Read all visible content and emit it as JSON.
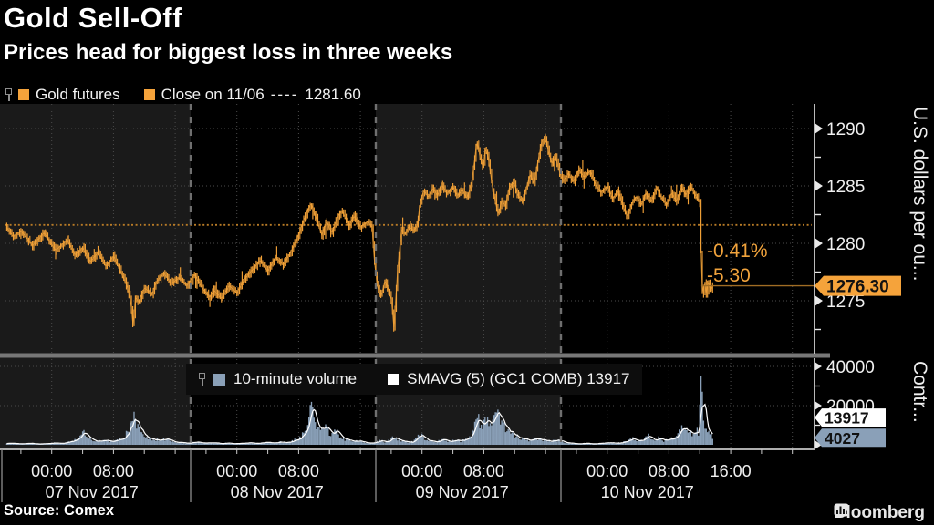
{
  "header": {
    "title": "Gold Sell-Off",
    "subtitle": "Prices head for biggest loss in three weeks"
  },
  "price_legend": {
    "series_label": "Gold futures",
    "close_label": "Close on 11/06",
    "close_dashes": "----",
    "close_value": "1281.60"
  },
  "volume_legend": {
    "volume_label": "10-minute volume",
    "smavg_label": "SMAVG (5) (GC1 COMB) 13917"
  },
  "annotations": {
    "pct_change": "-0.41%",
    "abs_change": "-5.30"
  },
  "tags": {
    "last_price": "1276.30",
    "smavg": "13917",
    "last_volume": "4027"
  },
  "axes": {
    "price_ticks": [
      1290,
      1285,
      1280,
      1275
    ],
    "price_minor_ticks": [
      1287.5,
      1282.5,
      1277.5,
      1272.5
    ],
    "price_axis_title": "U.S. dollars per ou...",
    "volume_ticks": [
      40000,
      20000
    ],
    "volume_minor_ticks": [
      30000,
      10000
    ],
    "volume_axis_title": "Contr...",
    "days": [
      {
        "label": "07 Nov 2017",
        "times": [
          "00:00",
          "08:00"
        ]
      },
      {
        "label": "08 Nov 2017",
        "times": [
          "00:00",
          "08:00"
        ]
      },
      {
        "label": "09 Nov 2017",
        "times": [
          "00:00",
          "08:00"
        ]
      },
      {
        "label": "10 Nov 2017",
        "times": [
          "00:00",
          "08:00",
          "16:00"
        ]
      }
    ]
  },
  "footer": {
    "source": "Source: Comex",
    "brand": "Bloomberg"
  },
  "colors": {
    "orange": "#f5a33b",
    "orange_dim": "#b87b26",
    "orange_line": "#a06c24",
    "volume_blue": "#8aa0b8",
    "smavg_white": "#ffffff",
    "panel_alt": "#1a1a1a",
    "grid": "#4b4b4b",
    "day_separator": "#6f6f6f",
    "panel_divider": "#777777",
    "axis": "#e8e8e8",
    "text": "#f0f0f0"
  },
  "chart_data": [
    {
      "type": "line",
      "name": "Gold futures (GC1) price, 10-minute bars",
      "x_unit": "hours since 06 Nov 2017 18:00",
      "ylim": [
        1270.5,
        1292
      ],
      "close_on_11_06": 1281.6,
      "last": 1276.3,
      "change_pct": -0.41,
      "change_abs": -5.3,
      "waypoints": [
        [
          0,
          1281.5
        ],
        [
          1,
          1280.6
        ],
        [
          2,
          1281.1
        ],
        [
          3.5,
          1279.8
        ],
        [
          5,
          1280.9
        ],
        [
          6.5,
          1279.4
        ],
        [
          8,
          1280.3
        ],
        [
          9,
          1279.0
        ],
        [
          10,
          1279.6
        ],
        [
          11,
          1278.4
        ],
        [
          12,
          1279.2
        ],
        [
          13,
          1278.0
        ],
        [
          14,
          1278.9
        ],
        [
          15,
          1277.4
        ],
        [
          15.8,
          1276.2
        ],
        [
          16.3,
          1274.6
        ],
        [
          16.55,
          1272.6
        ],
        [
          16.8,
          1275.3
        ],
        [
          17.3,
          1274.9
        ],
        [
          18,
          1276.1
        ],
        [
          19,
          1275.6
        ],
        [
          19.5,
          1276.6
        ],
        [
          20.5,
          1277.4
        ],
        [
          21.5,
          1276.5
        ],
        [
          22.5,
          1277.0
        ],
        [
          23.5,
          1276.3
        ],
        [
          24.5,
          1277.3
        ],
        [
          25.5,
          1276.1
        ],
        [
          26.5,
          1275.3
        ],
        [
          27,
          1275.9
        ],
        [
          28,
          1275.2
        ],
        [
          29,
          1276.3
        ],
        [
          30,
          1275.7
        ],
        [
          31,
          1276.9
        ],
        [
          32,
          1277.7
        ],
        [
          33,
          1278.5
        ],
        [
          34,
          1277.6
        ],
        [
          35,
          1278.8
        ],
        [
          36,
          1278.1
        ],
        [
          37,
          1279.3
        ],
        [
          37.8,
          1280.4
        ],
        [
          38.4,
          1281.5
        ],
        [
          39,
          1282.6
        ],
        [
          39.6,
          1283.5
        ],
        [
          40.2,
          1282.3
        ],
        [
          41,
          1280.7
        ],
        [
          41.6,
          1281.9
        ],
        [
          42.3,
          1280.9
        ],
        [
          43,
          1282.2
        ],
        [
          43.6,
          1282.9
        ],
        [
          44.5,
          1281.5
        ],
        [
          45.2,
          1282.4
        ],
        [
          46,
          1281.4
        ],
        [
          47,
          1281.9
        ],
        [
          47.5,
          1281.4
        ],
        [
          47.8,
          1278.5
        ],
        [
          48.2,
          1276.2
        ],
        [
          48.7,
          1275.4
        ],
        [
          49.2,
          1276.8
        ],
        [
          49.7,
          1275.8
        ],
        [
          50.1,
          1274.9
        ],
        [
          50.3,
          1272.4
        ],
        [
          50.6,
          1275.2
        ],
        [
          50.8,
          1277.5
        ],
        [
          51.3,
          1281.2
        ],
        [
          51.8,
          1280.8
        ],
        [
          52.3,
          1281.5
        ],
        [
          52.9,
          1281.1
        ],
        [
          53.4,
          1281.6
        ],
        [
          53.7,
          1283.4
        ],
        [
          54.2,
          1284.6
        ],
        [
          54.8,
          1284.0
        ],
        [
          55.4,
          1284.8
        ],
        [
          56,
          1284.2
        ],
        [
          56.6,
          1285.1
        ],
        [
          57.2,
          1284.3
        ],
        [
          58,
          1284.9
        ],
        [
          58.6,
          1284.1
        ],
        [
          59.2,
          1284.7
        ],
        [
          59.8,
          1283.9
        ],
        [
          60.4,
          1285.2
        ],
        [
          60.8,
          1287.2
        ],
        [
          61.1,
          1289.0
        ],
        [
          61.5,
          1287.5
        ],
        [
          61.9,
          1286.6
        ],
        [
          62.2,
          1288.3
        ],
        [
          62.6,
          1287.4
        ],
        [
          63.1,
          1284.9
        ],
        [
          63.5,
          1283.6
        ],
        [
          63.9,
          1282.4
        ],
        [
          64.3,
          1283.8
        ],
        [
          64.8,
          1283.2
        ],
        [
          65.3,
          1284.9
        ],
        [
          65.9,
          1285.3
        ],
        [
          66.4,
          1284.2
        ],
        [
          67,
          1283.6
        ],
        [
          67.5,
          1284.8
        ],
        [
          68,
          1286.0
        ],
        [
          68.5,
          1285.2
        ],
        [
          69,
          1287.1
        ],
        [
          69.5,
          1288.8
        ],
        [
          69.9,
          1289.3
        ],
        [
          70.3,
          1288.2
        ],
        [
          70.8,
          1286.9
        ],
        [
          71.3,
          1287.6
        ],
        [
          71.8,
          1286.2
        ],
        [
          72.3,
          1285.4
        ],
        [
          73,
          1286.1
        ],
        [
          73.6,
          1285.3
        ],
        [
          74.3,
          1286.4
        ],
        [
          75,
          1285.8
        ],
        [
          75.8,
          1286.3
        ],
        [
          76.5,
          1285.1
        ],
        [
          77.2,
          1284.4
        ],
        [
          78,
          1285.0
        ],
        [
          78.7,
          1283.9
        ],
        [
          79.4,
          1284.6
        ],
        [
          80.1,
          1283.2
        ],
        [
          80.6,
          1282.3
        ],
        [
          81.2,
          1283.5
        ],
        [
          81.8,
          1284.1
        ],
        [
          82.4,
          1283.3
        ],
        [
          83,
          1284.4
        ],
        [
          83.7,
          1283.6
        ],
        [
          84.4,
          1284.8
        ],
        [
          85,
          1284.0
        ],
        [
          85.7,
          1283.3
        ],
        [
          86.3,
          1284.4
        ],
        [
          87,
          1283.7
        ],
        [
          87.6,
          1284.9
        ],
        [
          88.2,
          1284.2
        ],
        [
          88.8,
          1285.0
        ],
        [
          89.3,
          1284.3
        ],
        [
          89.8,
          1283.8
        ],
        [
          90.05,
          1283.5
        ],
        [
          90.2,
          1278.0
        ],
        [
          90.35,
          1275.4
        ],
        [
          90.6,
          1276.8
        ],
        [
          90.85,
          1275.6
        ],
        [
          91.1,
          1276.9
        ],
        [
          91.4,
          1275.8
        ],
        [
          91.7,
          1276.3
        ]
      ]
    },
    {
      "type": "bar",
      "name": "10-minute volume (GC1 COMB)",
      "x_unit": "hours since 06 Nov 2017 18:00",
      "ylim": [
        0,
        46500
      ],
      "smavg_window": 5,
      "smavg_last": 13917,
      "last": 4027,
      "waypoints": [
        [
          0,
          600
        ],
        [
          1,
          900
        ],
        [
          2,
          500
        ],
        [
          3,
          700
        ],
        [
          4,
          400
        ],
        [
          5,
          600
        ],
        [
          6,
          1000
        ],
        [
          7,
          800
        ],
        [
          8,
          1200
        ],
        [
          9,
          2500
        ],
        [
          9.7,
          5500
        ],
        [
          10.1,
          7000
        ],
        [
          10.6,
          4500
        ],
        [
          11.2,
          2500
        ],
        [
          12,
          1800
        ],
        [
          13,
          2200
        ],
        [
          14,
          1500
        ],
        [
          15,
          3000
        ],
        [
          15.6,
          5000
        ],
        [
          16.1,
          9000
        ],
        [
          16.55,
          15500
        ],
        [
          16.9,
          11000
        ],
        [
          17.4,
          7000
        ],
        [
          18,
          5200
        ],
        [
          18.6,
          3500
        ],
        [
          19.5,
          2500
        ],
        [
          20.5,
          3200
        ],
        [
          21.5,
          1800
        ],
        [
          22.5,
          1200
        ],
        [
          23.5,
          900
        ],
        [
          24.5,
          1400
        ],
        [
          25.5,
          800
        ],
        [
          26.5,
          1100
        ],
        [
          27.5,
          700
        ],
        [
          28.5,
          900
        ],
        [
          29.5,
          600
        ],
        [
          30.5,
          800
        ],
        [
          31.5,
          1000
        ],
        [
          32.5,
          700
        ],
        [
          33.5,
          1200
        ],
        [
          34.5,
          900
        ],
        [
          35.5,
          1500
        ],
        [
          36.5,
          1100
        ],
        [
          37.3,
          2000
        ],
        [
          38,
          3500
        ],
        [
          38.6,
          5500
        ],
        [
          39.2,
          9500
        ],
        [
          39.6,
          23000
        ],
        [
          40,
          14000
        ],
        [
          40.5,
          9000
        ],
        [
          41,
          6500
        ],
        [
          41.6,
          8800
        ],
        [
          42.2,
          5000
        ],
        [
          42.8,
          7500
        ],
        [
          43.4,
          4200
        ],
        [
          44,
          2800
        ],
        [
          44.8,
          1800
        ],
        [
          45.6,
          2400
        ],
        [
          46.4,
          1300
        ],
        [
          47.2,
          1000
        ],
        [
          48,
          1600
        ],
        [
          48.6,
          2200
        ],
        [
          49.4,
          1400
        ],
        [
          50.1,
          3200
        ],
        [
          50.4,
          4500
        ],
        [
          50.9,
          2600
        ],
        [
          51.5,
          1800
        ],
        [
          52.2,
          1200
        ],
        [
          52.8,
          1600
        ],
        [
          53.4,
          3800
        ],
        [
          53.9,
          5200
        ],
        [
          54.4,
          3000
        ],
        [
          55,
          2200
        ],
        [
          55.8,
          1500
        ],
        [
          56.6,
          2600
        ],
        [
          57.4,
          1700
        ],
        [
          58.2,
          2300
        ],
        [
          59,
          1900
        ],
        [
          59.8,
          2800
        ],
        [
          60.4,
          5200
        ],
        [
          60.9,
          9800
        ],
        [
          61.3,
          12500
        ],
        [
          61.8,
          9500
        ],
        [
          62.3,
          12800
        ],
        [
          62.8,
          10200
        ],
        [
          63.3,
          11800
        ],
        [
          63.8,
          16500
        ],
        [
          64.1,
          13000
        ],
        [
          64.6,
          9500
        ],
        [
          65.2,
          7000
        ],
        [
          65.8,
          5200
        ],
        [
          66.5,
          3800
        ],
        [
          67.3,
          2800
        ],
        [
          68.2,
          2200
        ],
        [
          69,
          3000
        ],
        [
          69.8,
          2400
        ],
        [
          70.6,
          1900
        ],
        [
          71.4,
          2600
        ],
        [
          72.2,
          1500
        ],
        [
          73,
          900
        ],
        [
          74,
          600
        ],
        [
          75,
          800
        ],
        [
          76,
          500
        ],
        [
          77,
          700
        ],
        [
          78,
          1000
        ],
        [
          79,
          800
        ],
        [
          80,
          1200
        ],
        [
          80.7,
          2200
        ],
        [
          81.4,
          3200
        ],
        [
          82,
          1800
        ],
        [
          82.7,
          2600
        ],
        [
          83.4,
          4800
        ],
        [
          84,
          2400
        ],
        [
          84.7,
          3400
        ],
        [
          85.4,
          2000
        ],
        [
          86,
          3800
        ],
        [
          86.6,
          2600
        ],
        [
          87.2,
          6500
        ],
        [
          87.8,
          10800
        ],
        [
          88.4,
          8200
        ],
        [
          89,
          5500
        ],
        [
          89.5,
          7200
        ],
        [
          89.9,
          6000
        ],
        [
          90.2,
          39800
        ],
        [
          90.45,
          16000
        ],
        [
          90.7,
          8500
        ],
        [
          91,
          6800
        ],
        [
          91.3,
          5200
        ],
        [
          91.7,
          4027
        ]
      ]
    }
  ]
}
